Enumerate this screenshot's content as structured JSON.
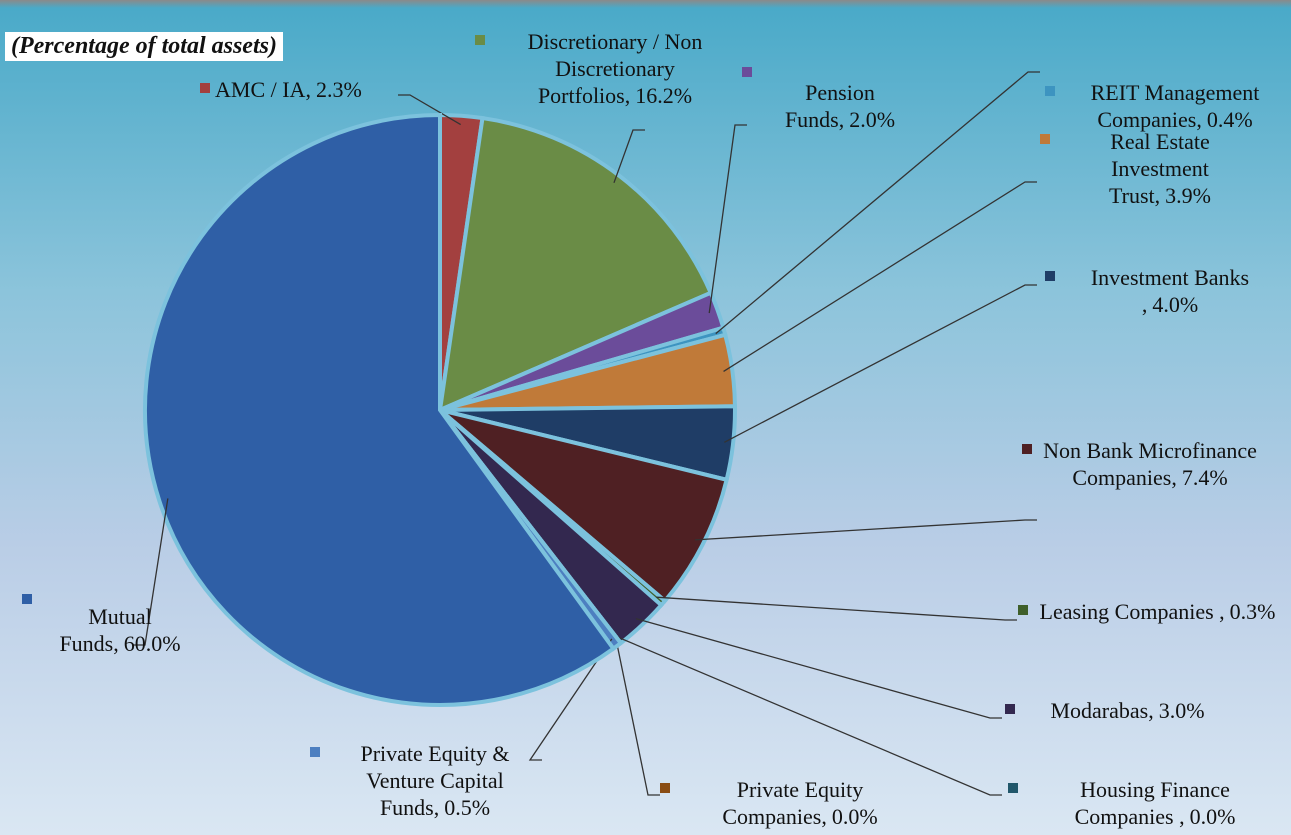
{
  "chart_data": {
    "type": "pie",
    "title": "(Percentage of total assets)",
    "categories": [
      "AMC / IA,",
      "Discretionary / Non Discretionary Portfolios,",
      "Pension Funds,",
      "REIT Management Companies,",
      "Real Estate Investment Trust,",
      "Investment Banks ,",
      "Non Bank Microfinance Companies,",
      "Leasing Companies ,",
      "Modarabas,",
      "Housing Finance Companies ,",
      "Private Equity Companies,",
      "Private Equity & Venture Capital Funds,",
      "Mutual Funds,"
    ],
    "values": [
      2.3,
      16.2,
      2.0,
      0.4,
      3.9,
      4.0,
      7.4,
      0.3,
      3.0,
      0.0,
      0.0,
      0.5,
      60.0
    ],
    "value_labels": [
      "2.3%",
      "16.2%",
      "2.0%",
      "0.4%",
      "3.9%",
      "4.0%",
      "7.4%",
      "0.3%",
      "3.0%",
      "0.0%",
      "0.0%",
      "0.5%",
      "60.0%"
    ],
    "colors": [
      "#a3403f",
      "#6a8c46",
      "#6b4c9a",
      "#3d94c0",
      "#c07a39",
      "#1f3d66",
      "#4f2023",
      "#3f5f2a",
      "#33284f",
      "#21576b",
      "#8a4d14",
      "#4d7fc0",
      "#2f5fa6"
    ]
  }
}
